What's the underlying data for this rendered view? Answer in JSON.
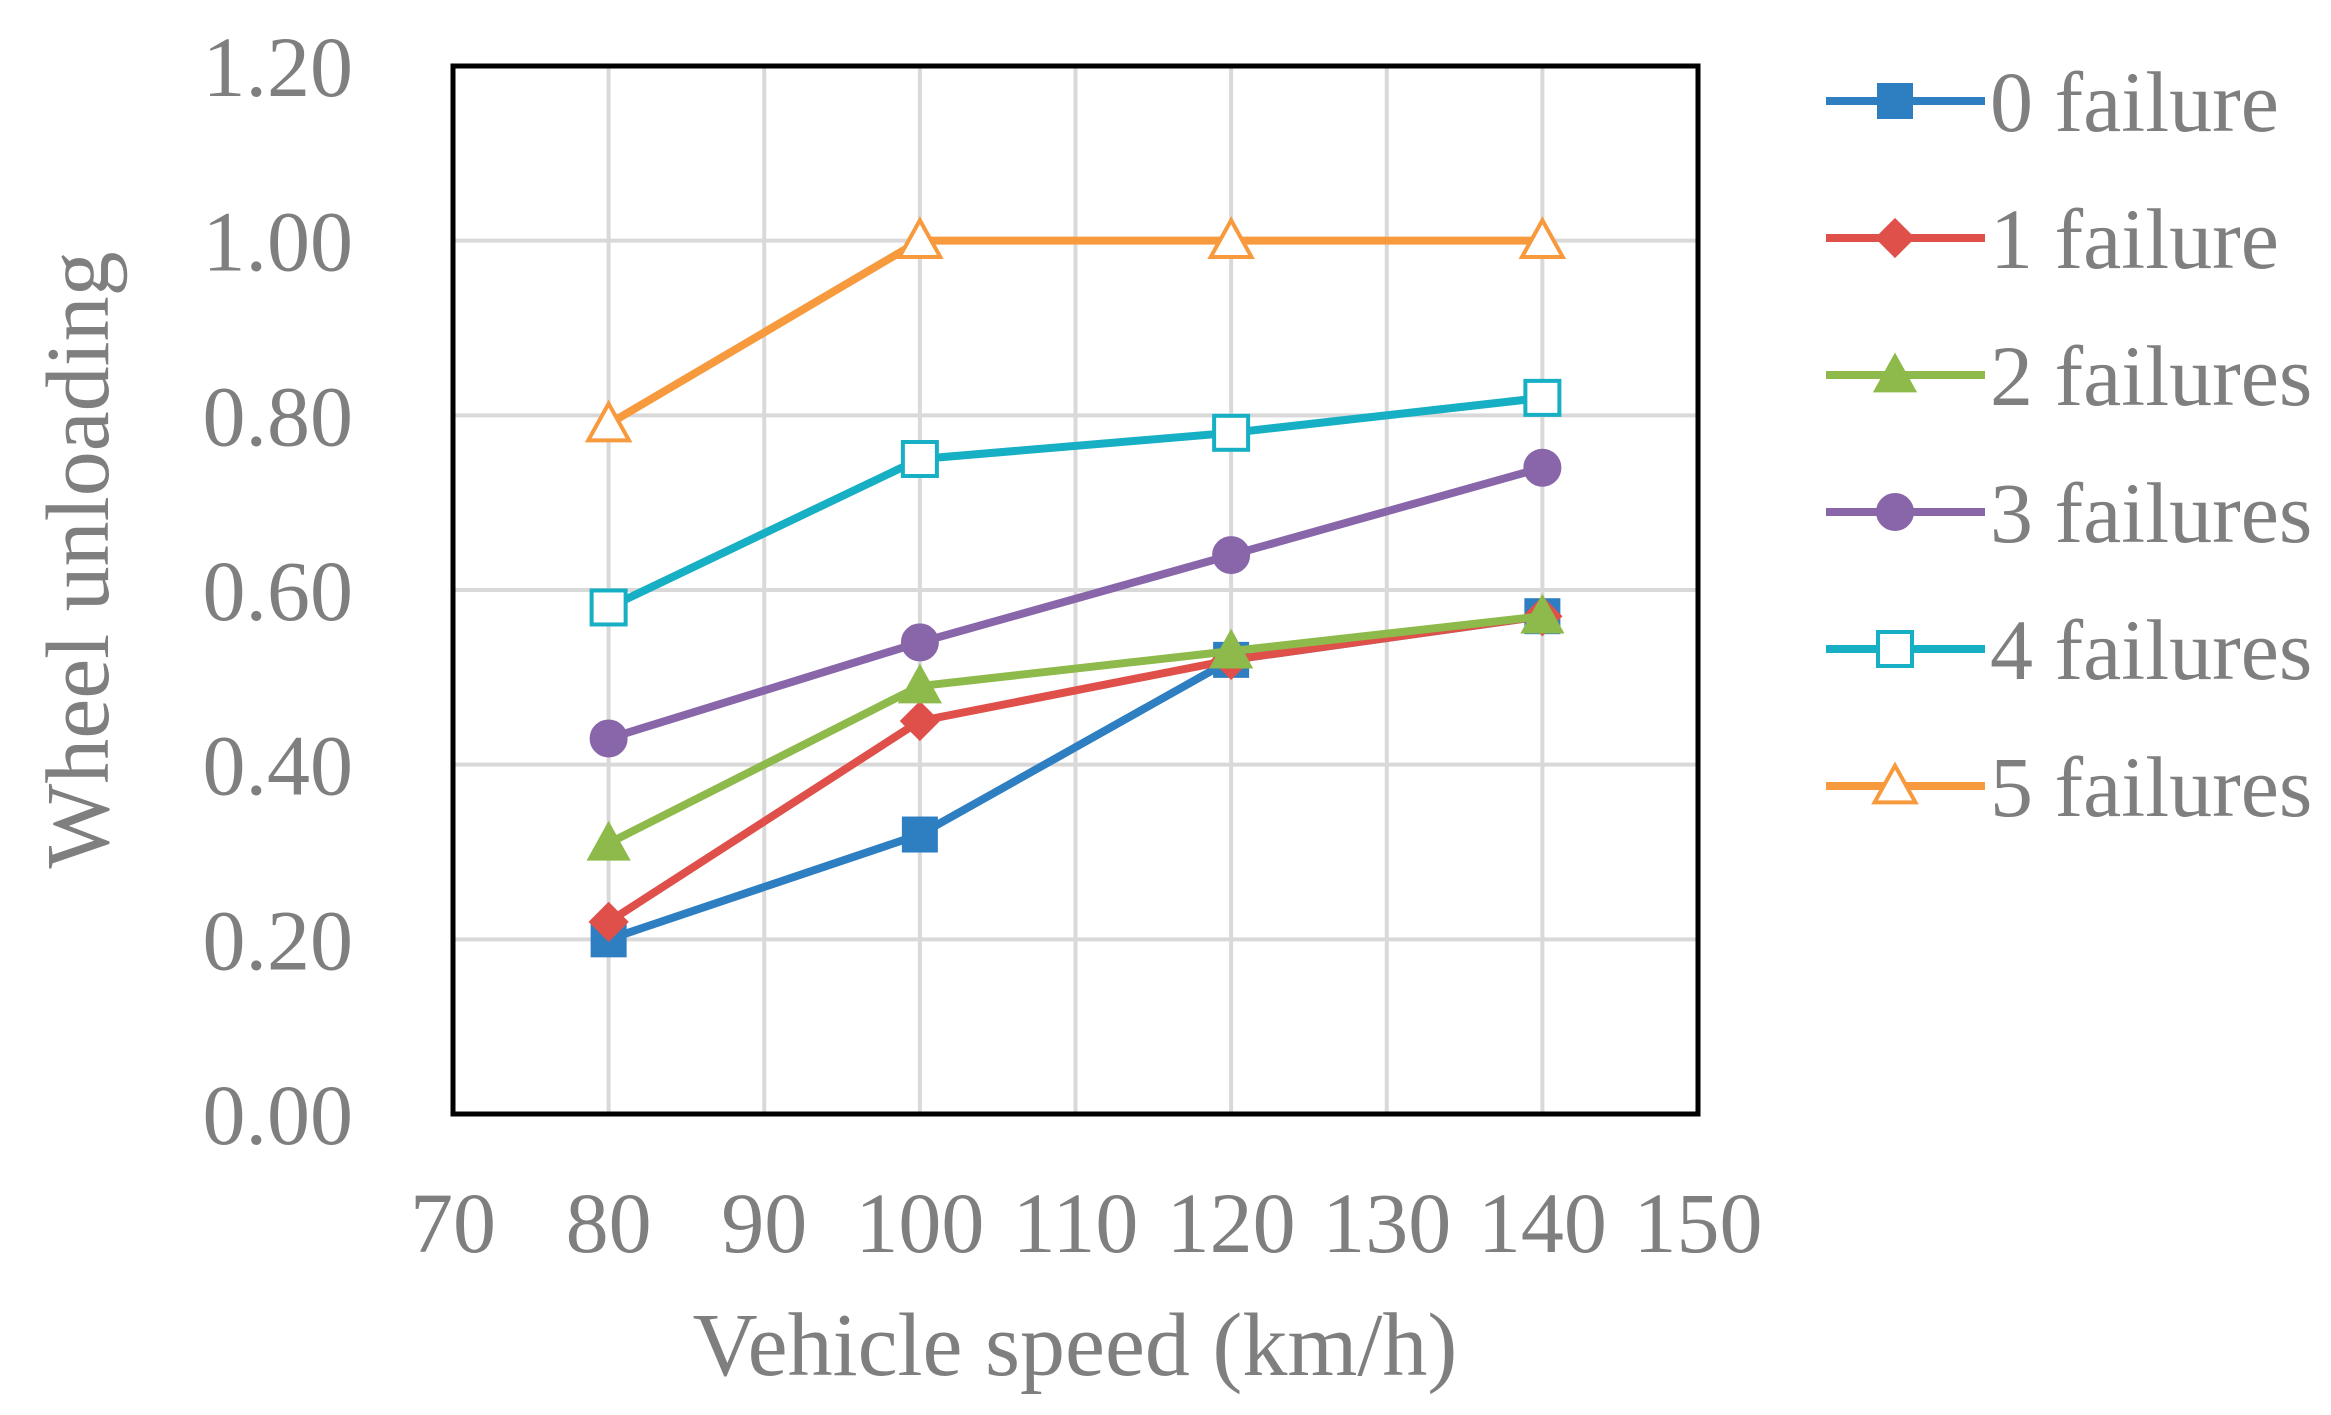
{
  "chart_data": {
    "type": "line",
    "title": "",
    "xlabel": "Vehicle speed (km/h)",
    "ylabel": "Wheel unloading",
    "xlim": [
      70,
      150
    ],
    "ylim": [
      0,
      1.2
    ],
    "x_ticks": [
      "70",
      "80",
      "90",
      "100",
      "110",
      "120",
      "130",
      "140",
      "150"
    ],
    "y_ticks": [
      "0.00",
      "0.20",
      "0.40",
      "0.60",
      "0.80",
      "1.00",
      "1.20"
    ],
    "grid": true,
    "legend_position": "right",
    "x": [
      80,
      100,
      120,
      140
    ],
    "series": [
      {
        "name": "0 failure",
        "values": [
          0.2,
          0.32,
          0.52,
          0.57
        ],
        "color": "#2E7EC2",
        "marker": "square",
        "filled": true
      },
      {
        "name": "1 failure",
        "values": [
          0.22,
          0.45,
          0.52,
          0.57
        ],
        "color": "#E0504A",
        "marker": "diamond",
        "filled": true
      },
      {
        "name": "2 failures",
        "values": [
          0.31,
          0.49,
          0.53,
          0.57
        ],
        "color": "#8DBA4A",
        "marker": "triangle",
        "filled": true
      },
      {
        "name": "3 failures",
        "values": [
          0.43,
          0.54,
          0.64,
          0.74
        ],
        "color": "#8866A9",
        "marker": "circle",
        "filled": true
      },
      {
        "name": "4 failures",
        "values": [
          0.58,
          0.75,
          0.78,
          0.82
        ],
        "color": "#16AFC4",
        "marker": "square",
        "filled": false
      },
      {
        "name": "5 failures",
        "values": [
          0.79,
          1.0,
          1.0,
          1.0
        ],
        "color": "#F79A3D",
        "marker": "triangle",
        "filled": false
      }
    ]
  }
}
